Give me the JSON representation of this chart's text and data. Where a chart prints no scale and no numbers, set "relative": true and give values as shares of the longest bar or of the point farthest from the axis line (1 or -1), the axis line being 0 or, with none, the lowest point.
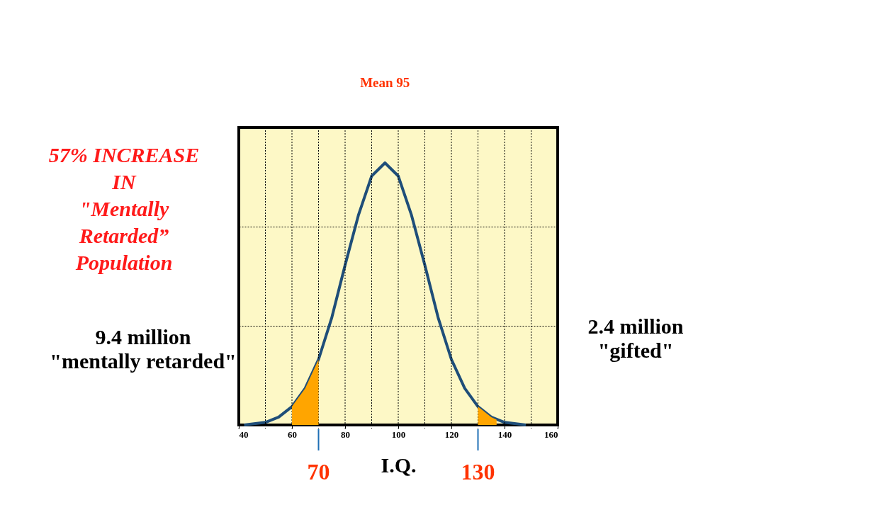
{
  "chart_data": {
    "type": "line",
    "relative": true,
    "xlabel": "I.Q.",
    "xlim": [
      40,
      160
    ],
    "xticks": [
      40,
      {
        "value": 50,
        "label": null
      },
      60,
      {
        "value": 70,
        "label": null
      },
      80,
      {
        "value": 90,
        "label": null
      },
      100,
      {
        "value": 110,
        "label": null
      },
      120,
      {
        "value": 130,
        "label": null
      },
      140,
      {
        "value": 150,
        "label": null
      },
      160
    ],
    "grid": true,
    "series": [
      {
        "color": "#1f4e79",
        "x": [
          42,
          50,
          55,
          60,
          65,
          70,
          75,
          80,
          85,
          90,
          95,
          100,
          105,
          110,
          115,
          120,
          125,
          130,
          135,
          140,
          148
        ],
        "values": [
          0.0,
          0.01,
          0.03,
          0.07,
          0.14,
          0.25,
          0.41,
          0.61,
          0.8,
          0.95,
          1,
          0.95,
          0.8,
          0.61,
          0.41,
          0.25,
          0.14,
          0.07,
          0.03,
          0.01,
          0.0
        ]
      },
      {
        "type": "area",
        "color": "#ffa500",
        "x": [
          60,
          65,
          70
        ],
        "values": [
          0.07,
          0.14,
          0.25
        ]
      },
      {
        "type": "area",
        "color": "#ffa500",
        "x": [
          130,
          135,
          137
        ],
        "values": [
          0.07,
          0.03,
          0.02
        ]
      }
    ],
    "ref_lines": [
      {
        "axis": "x",
        "value": 70,
        "label": "70"
      },
      {
        "axis": "x",
        "value": 130,
        "label": "130"
      }
    ],
    "annotations": [
      "57% INCREASE\nIN\n\"Mentally\nRetarded”\nPopulation",
      "Mean 95",
      "9.4 million\n\"mentally retarded\"",
      "2.4 million\n\"gifted\""
    ]
  }
}
